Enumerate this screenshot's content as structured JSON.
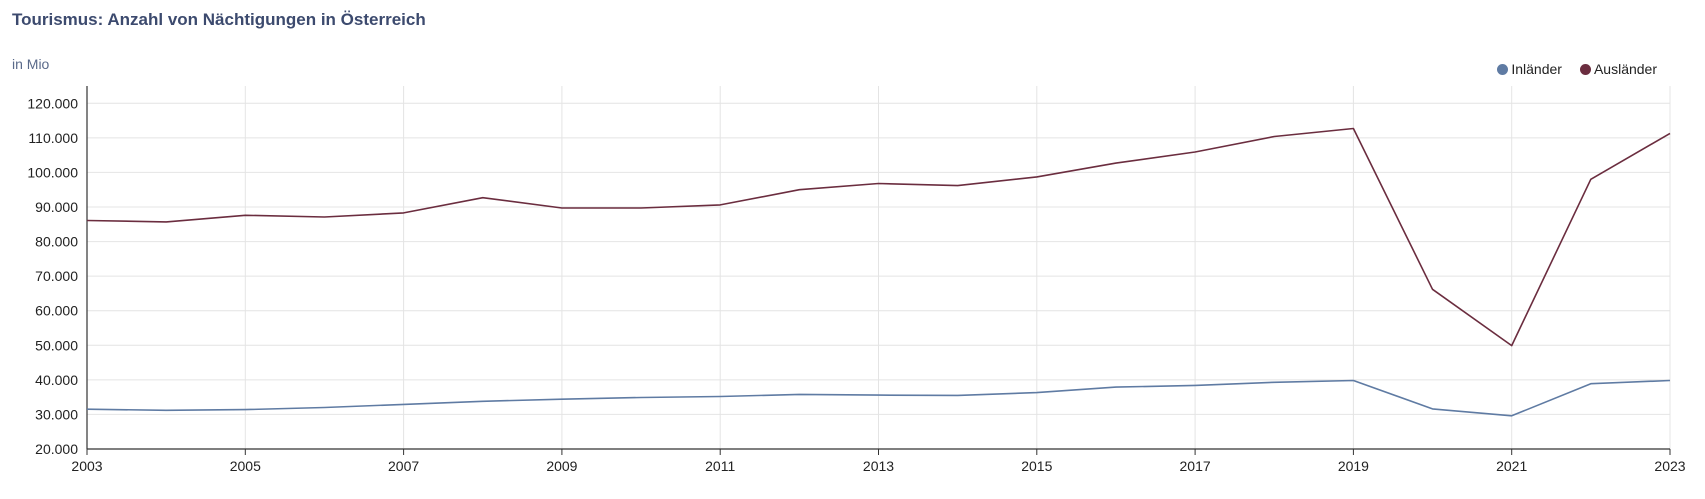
{
  "chart_data": {
    "type": "line",
    "title": "Tourismus: Anzahl von Nächtigungen in Österreich",
    "unit": "in Mio",
    "x": [
      2003,
      2004,
      2005,
      2006,
      2007,
      2008,
      2009,
      2010,
      2011,
      2012,
      2013,
      2014,
      2015,
      2016,
      2017,
      2018,
      2019,
      2020,
      2021,
      2022,
      2023
    ],
    "x_ticks": [
      "2003",
      "2005",
      "2007",
      "2009",
      "2011",
      "2013",
      "2015",
      "2017",
      "2019",
      "2021",
      "2023"
    ],
    "y_ticks": [
      "20.000",
      "30.000",
      "40.000",
      "50.000",
      "60.000",
      "70.000",
      "80.000",
      "90.000",
      "100.000",
      "110.000",
      "120.000"
    ],
    "ylim": [
      20000,
      125000
    ],
    "grid": true,
    "legend_position": "top-right",
    "series": [
      {
        "name": "Inländer",
        "color": "#5f7ba3",
        "values": [
          31500,
          31200,
          31400,
          32000,
          32900,
          33800,
          34400,
          34900,
          35200,
          35800,
          35600,
          35500,
          36300,
          37900,
          38400,
          39300,
          39800,
          31600,
          29600,
          38900,
          39800
        ]
      },
      {
        "name": "Ausländer",
        "color": "#6b2d3f",
        "values": [
          86100,
          85700,
          87600,
          87100,
          88300,
          92700,
          89700,
          89700,
          90600,
          95000,
          96800,
          96200,
          98700,
          102700,
          105900,
          110400,
          112700,
          66200,
          49900,
          98000,
          111300
        ]
      }
    ]
  }
}
